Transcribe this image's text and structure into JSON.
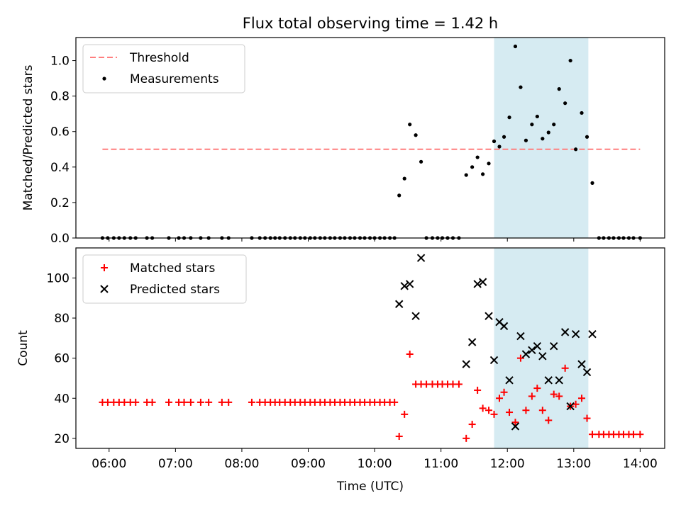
{
  "chart_data": {
    "title": "Flux total observing time = 1.42 h",
    "xlabel": "Time (UTC)",
    "x_ticks": [
      "06:00",
      "07:00",
      "08:00",
      "09:00",
      "10:00",
      "11:00",
      "12:00",
      "13:00",
      "14:00"
    ],
    "x_range_hours": [
      5.5,
      14.37
    ],
    "highlight_span_hours": [
      11.8,
      13.22
    ],
    "colors": {
      "threshold": "#ff7f7f",
      "measurement": "#000000",
      "matched": "#ff0000",
      "predicted": "#000000",
      "span_fill": "#add8e6"
    },
    "panels": [
      {
        "type": "scatter",
        "ylabel": "Matched/Predicted stars",
        "ylim": [
          0,
          1.13
        ],
        "y_ticks": [
          0.0,
          0.2,
          0.4,
          0.6,
          0.8,
          1.0
        ],
        "y_tick_labels": [
          "0.0",
          "0.2",
          "0.4",
          "0.6",
          "0.8",
          "1.0"
        ],
        "legend_position": "upper-left",
        "threshold": {
          "name": "Threshold",
          "value": 0.5,
          "x_start": 5.9,
          "x_end": 14.0
        },
        "series": [
          {
            "name": "Measurements",
            "marker": "dot",
            "points": [
              [
                5.9,
                0
              ],
              [
                5.98,
                0
              ],
              [
                6.07,
                0
              ],
              [
                6.15,
                0
              ],
              [
                6.23,
                0
              ],
              [
                6.32,
                0
              ],
              [
                6.4,
                0
              ],
              [
                6.57,
                0
              ],
              [
                6.65,
                0
              ],
              [
                6.9,
                0
              ],
              [
                7.05,
                0
              ],
              [
                7.13,
                0
              ],
              [
                7.23,
                0
              ],
              [
                7.38,
                0
              ],
              [
                7.5,
                0
              ],
              [
                7.7,
                0
              ],
              [
                7.8,
                0
              ],
              [
                8.15,
                0
              ],
              [
                8.27,
                0
              ],
              [
                8.35,
                0
              ],
              [
                8.43,
                0
              ],
              [
                8.5,
                0
              ],
              [
                8.57,
                0
              ],
              [
                8.65,
                0
              ],
              [
                8.73,
                0
              ],
              [
                8.8,
                0
              ],
              [
                8.88,
                0
              ],
              [
                8.95,
                0
              ],
              [
                9.03,
                0
              ],
              [
                9.1,
                0
              ],
              [
                9.18,
                0
              ],
              [
                9.25,
                0
              ],
              [
                9.33,
                0
              ],
              [
                9.4,
                0
              ],
              [
                9.48,
                0
              ],
              [
                9.55,
                0
              ],
              [
                9.63,
                0
              ],
              [
                9.7,
                0
              ],
              [
                9.78,
                0
              ],
              [
                9.85,
                0
              ],
              [
                9.93,
                0
              ],
              [
                10.0,
                0
              ],
              [
                10.08,
                0
              ],
              [
                10.15,
                0
              ],
              [
                10.23,
                0
              ],
              [
                10.3,
                0
              ],
              [
                10.37,
                0.24
              ],
              [
                10.45,
                0.335
              ],
              [
                10.53,
                0.64
              ],
              [
                10.62,
                0.58
              ],
              [
                10.7,
                0.43
              ],
              [
                10.78,
                0
              ],
              [
                10.87,
                0
              ],
              [
                10.95,
                0
              ],
              [
                11.02,
                0
              ],
              [
                11.1,
                0
              ],
              [
                11.18,
                0
              ],
              [
                11.27,
                0
              ],
              [
                11.38,
                0.355
              ],
              [
                11.47,
                0.4
              ],
              [
                11.55,
                0.455
              ],
              [
                11.63,
                0.36
              ],
              [
                11.72,
                0.42
              ],
              [
                11.8,
                0.545
              ],
              [
                11.88,
                0.515
              ],
              [
                11.95,
                0.57
              ],
              [
                12.03,
                0.68
              ],
              [
                12.12,
                1.08
              ],
              [
                12.2,
                0.85
              ],
              [
                12.28,
                0.55
              ],
              [
                12.37,
                0.64
              ],
              [
                12.45,
                0.685
              ],
              [
                12.53,
                0.56
              ],
              [
                12.62,
                0.595
              ],
              [
                12.7,
                0.64
              ],
              [
                12.78,
                0.84
              ],
              [
                12.87,
                0.76
              ],
              [
                12.95,
                1.0
              ],
              [
                13.03,
                0.5
              ],
              [
                13.12,
                0.705
              ],
              [
                13.2,
                0.57
              ],
              [
                13.28,
                0.31
              ],
              [
                13.38,
                0
              ],
              [
                13.45,
                0
              ],
              [
                13.53,
                0
              ],
              [
                13.6,
                0
              ],
              [
                13.68,
                0
              ],
              [
                13.75,
                0
              ],
              [
                13.83,
                0
              ],
              [
                13.9,
                0
              ],
              [
                14.0,
                0
              ]
            ]
          }
        ]
      },
      {
        "type": "scatter",
        "ylabel": "Count",
        "ylim": [
          15,
          115
        ],
        "y_ticks": [
          20,
          40,
          60,
          80,
          100
        ],
        "y_tick_labels": [
          "20",
          "40",
          "60",
          "80",
          "100"
        ],
        "legend_position": "upper-left",
        "series": [
          {
            "name": "Matched stars",
            "marker": "plus",
            "points": [
              [
                5.9,
                38
              ],
              [
                5.98,
                38
              ],
              [
                6.07,
                38
              ],
              [
                6.15,
                38
              ],
              [
                6.23,
                38
              ],
              [
                6.32,
                38
              ],
              [
                6.4,
                38
              ],
              [
                6.57,
                38
              ],
              [
                6.65,
                38
              ],
              [
                6.9,
                38
              ],
              [
                7.05,
                38
              ],
              [
                7.13,
                38
              ],
              [
                7.23,
                38
              ],
              [
                7.38,
                38
              ],
              [
                7.5,
                38
              ],
              [
                7.7,
                38
              ],
              [
                7.8,
                38
              ],
              [
                8.15,
                38
              ],
              [
                8.27,
                38
              ],
              [
                8.35,
                38
              ],
              [
                8.43,
                38
              ],
              [
                8.5,
                38
              ],
              [
                8.57,
                38
              ],
              [
                8.65,
                38
              ],
              [
                8.73,
                38
              ],
              [
                8.8,
                38
              ],
              [
                8.88,
                38
              ],
              [
                8.95,
                38
              ],
              [
                9.03,
                38
              ],
              [
                9.1,
                38
              ],
              [
                9.18,
                38
              ],
              [
                9.25,
                38
              ],
              [
                9.33,
                38
              ],
              [
                9.4,
                38
              ],
              [
                9.48,
                38
              ],
              [
                9.55,
                38
              ],
              [
                9.63,
                38
              ],
              [
                9.7,
                38
              ],
              [
                9.78,
                38
              ],
              [
                9.85,
                38
              ],
              [
                9.93,
                38
              ],
              [
                10.0,
                38
              ],
              [
                10.08,
                38
              ],
              [
                10.15,
                38
              ],
              [
                10.23,
                38
              ],
              [
                10.3,
                38
              ],
              [
                10.37,
                21
              ],
              [
                10.45,
                32
              ],
              [
                10.53,
                62
              ],
              [
                10.62,
                47
              ],
              [
                10.7,
                47
              ],
              [
                10.78,
                47
              ],
              [
                10.87,
                47
              ],
              [
                10.95,
                47
              ],
              [
                11.02,
                47
              ],
              [
                11.1,
                47
              ],
              [
                11.18,
                47
              ],
              [
                11.27,
                47
              ],
              [
                11.38,
                20
              ],
              [
                11.47,
                27
              ],
              [
                11.55,
                44
              ],
              [
                11.63,
                35
              ],
              [
                11.72,
                34
              ],
              [
                11.8,
                32
              ],
              [
                11.88,
                40
              ],
              [
                11.95,
                43
              ],
              [
                12.03,
                33
              ],
              [
                12.12,
                28
              ],
              [
                12.2,
                60
              ],
              [
                12.28,
                34
              ],
              [
                12.37,
                41
              ],
              [
                12.45,
                45
              ],
              [
                12.53,
                34
              ],
              [
                12.62,
                29
              ],
              [
                12.7,
                42
              ],
              [
                12.78,
                41
              ],
              [
                12.87,
                55
              ],
              [
                12.95,
                36
              ],
              [
                13.03,
                37
              ],
              [
                13.12,
                40
              ],
              [
                13.2,
                30
              ],
              [
                13.28,
                22
              ],
              [
                13.38,
                22
              ],
              [
                13.45,
                22
              ],
              [
                13.53,
                22
              ],
              [
                13.6,
                22
              ],
              [
                13.68,
                22
              ],
              [
                13.75,
                22
              ],
              [
                13.83,
                22
              ],
              [
                13.9,
                22
              ],
              [
                14.0,
                22
              ]
            ]
          },
          {
            "name": "Predicted stars",
            "marker": "x",
            "points": [
              [
                10.37,
                87
              ],
              [
                10.45,
                96
              ],
              [
                10.53,
                97
              ],
              [
                10.62,
                81
              ],
              [
                10.7,
                110
              ],
              [
                11.38,
                57
              ],
              [
                11.47,
                68
              ],
              [
                11.55,
                97
              ],
              [
                11.63,
                98
              ],
              [
                11.72,
                81
              ],
              [
                11.8,
                59
              ],
              [
                11.88,
                78
              ],
              [
                11.95,
                76
              ],
              [
                12.03,
                49
              ],
              [
                12.12,
                26
              ],
              [
                12.2,
                71
              ],
              [
                12.28,
                62
              ],
              [
                12.37,
                64
              ],
              [
                12.45,
                66
              ],
              [
                12.53,
                61
              ],
              [
                12.62,
                49
              ],
              [
                12.7,
                66
              ],
              [
                12.78,
                49
              ],
              [
                12.87,
                73
              ],
              [
                12.95,
                36
              ],
              [
                13.03,
                72
              ],
              [
                13.12,
                57
              ],
              [
                13.2,
                53
              ],
              [
                13.28,
                72
              ]
            ]
          }
        ]
      }
    ]
  }
}
